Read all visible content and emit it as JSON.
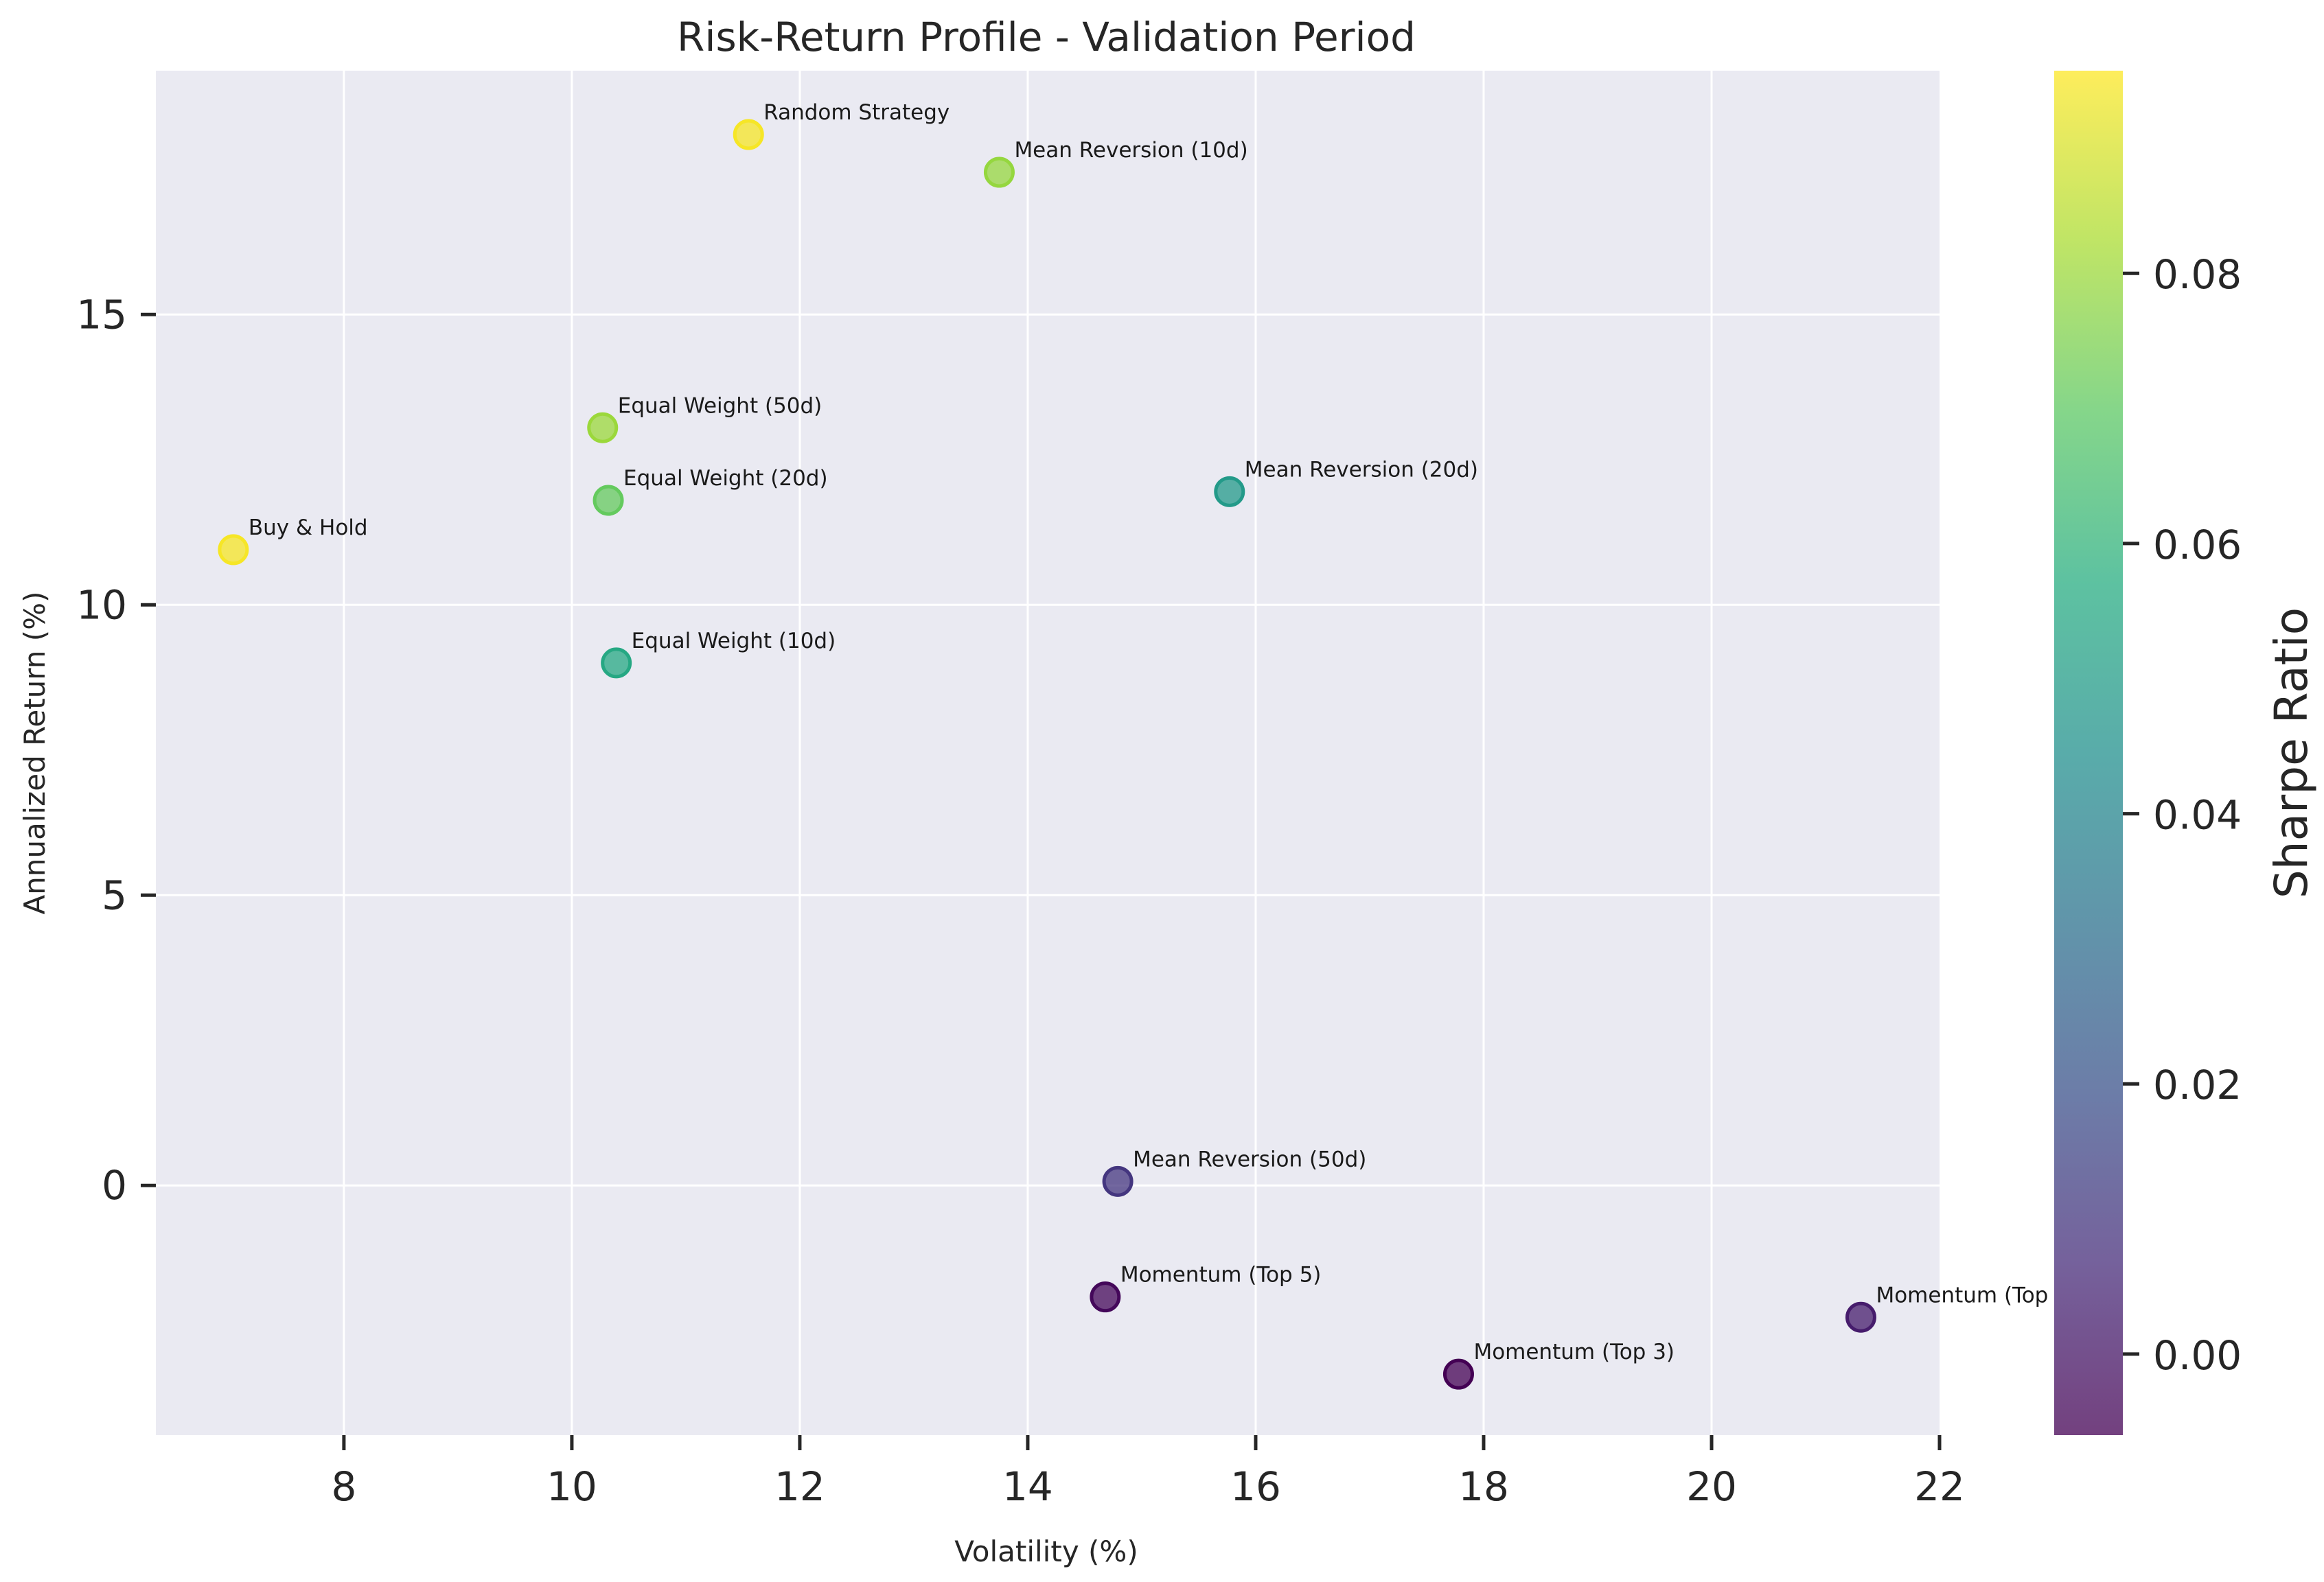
{
  "chart_data": {
    "type": "scatter",
    "title": "Risk-Return Profile - Validation Period",
    "xlabel": "Volatility (%)",
    "ylabel": "Annualized Return (%)",
    "xlim": [
      6.35,
      22.0
    ],
    "ylim": [
      -4.3,
      19.2
    ],
    "xticks": [
      8,
      10,
      12,
      14,
      16,
      18,
      20,
      22
    ],
    "yticks": [
      0,
      5,
      10,
      15
    ],
    "grid": true,
    "colorbar": {
      "label": "Sharpe Ratio",
      "colormap": "viridis",
      "range": [
        -0.006,
        0.095
      ],
      "ticks": [
        "0.00",
        "0.02",
        "0.04",
        "0.06",
        "0.08"
      ],
      "tick_values": [
        0.0,
        0.02,
        0.04,
        0.06,
        0.08
      ]
    },
    "points": [
      {
        "label": "Random Strategy",
        "x": 11.55,
        "y": 18.1,
        "sharpe": 0.094
      },
      {
        "label": "Mean Reversion (10d)",
        "x": 13.75,
        "y": 17.45,
        "sharpe": 0.079
      },
      {
        "label": "Equal Weight (50d)",
        "x": 10.27,
        "y": 13.05,
        "sharpe": 0.08
      },
      {
        "label": "Equal Weight (20d)",
        "x": 10.32,
        "y": 11.8,
        "sharpe": 0.071
      },
      {
        "label": "Mean Reversion (20d)",
        "x": 15.77,
        "y": 11.95,
        "sharpe": 0.049
      },
      {
        "label": "Buy & Hold",
        "x": 7.03,
        "y": 10.95,
        "sharpe": 0.094
      },
      {
        "label": "Equal Weight (10d)",
        "x": 10.39,
        "y": 9.0,
        "sharpe": 0.055
      },
      {
        "label": "Mean Reversion (50d)",
        "x": 14.79,
        "y": 0.07,
        "sharpe": 0.01
      },
      {
        "label": "Momentum (Top 5)",
        "x": 14.68,
        "y": -1.92,
        "sharpe": -0.004
      },
      {
        "label": "Momentum (Top",
        "x": 21.31,
        "y": -2.27,
        "sharpe": 0.002
      },
      {
        "label": "Momentum (Top 3)",
        "x": 17.78,
        "y": -3.25,
        "sharpe": -0.006
      }
    ]
  }
}
